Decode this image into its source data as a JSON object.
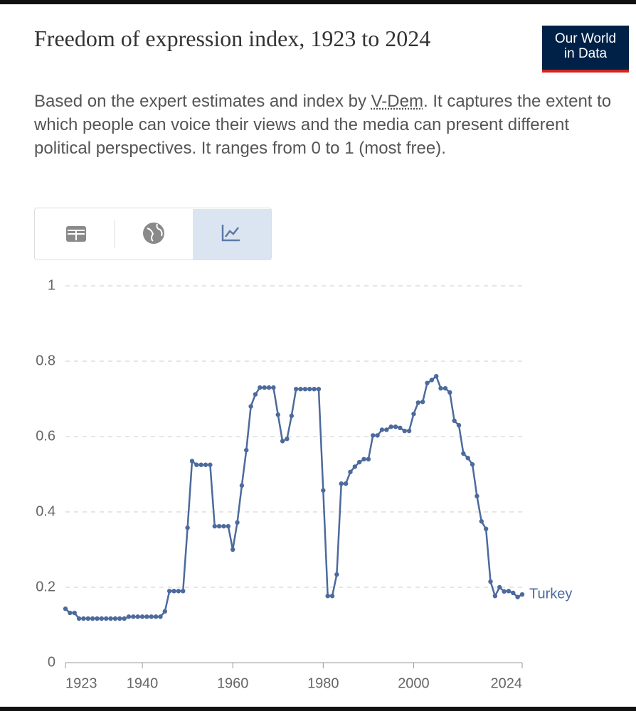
{
  "header": {
    "title": "Freedom of expression index, 1923 to 2024",
    "logo": [
      "Our World",
      "in Data"
    ],
    "subtitle": [
      "Based on the expert estimates and index by ",
      "V-Dem",
      ". It captures the extent to which people can voice their views and the media can present different political perspectives. It ranges from 0 to 1 (most free)."
    ]
  },
  "chart_data": {
    "type": "line",
    "x": [
      1923,
      1924,
      1925,
      1926,
      1927,
      1928,
      1929,
      1930,
      1931,
      1932,
      1933,
      1934,
      1935,
      1936,
      1937,
      1938,
      1939,
      1940,
      1941,
      1942,
      1943,
      1944,
      1945,
      1946,
      1947,
      1948,
      1949,
      1950,
      1951,
      1952,
      1953,
      1954,
      1955,
      1956,
      1957,
      1958,
      1959,
      1960,
      1961,
      1962,
      1963,
      1964,
      1965,
      1966,
      1967,
      1968,
      1969,
      1970,
      1971,
      1972,
      1973,
      1974,
      1975,
      1976,
      1977,
      1978,
      1979,
      1980,
      1981,
      1982,
      1983,
      1984,
      1985,
      1986,
      1987,
      1988,
      1989,
      1990,
      1991,
      1992,
      1993,
      1994,
      1995,
      1996,
      1997,
      1998,
      1999,
      2000,
      2001,
      2002,
      2003,
      2004,
      2005,
      2006,
      2007,
      2008,
      2009,
      2010,
      2011,
      2012,
      2013,
      2014,
      2015,
      2016,
      2017,
      2018,
      2019,
      2020,
      2021,
      2022,
      2023,
      2024
    ],
    "series": [
      {
        "name": "Turkey",
        "color": "#4c6a9c",
        "values": [
          0.143,
          0.132,
          0.132,
          0.117,
          0.117,
          0.117,
          0.117,
          0.117,
          0.117,
          0.117,
          0.117,
          0.117,
          0.117,
          0.117,
          0.122,
          0.122,
          0.122,
          0.122,
          0.122,
          0.122,
          0.122,
          0.122,
          0.136,
          0.19,
          0.19,
          0.19,
          0.19,
          0.358,
          0.535,
          0.525,
          0.525,
          0.525,
          0.525,
          0.362,
          0.362,
          0.362,
          0.362,
          0.3,
          0.372,
          0.47,
          0.564,
          0.68,
          0.712,
          0.73,
          0.73,
          0.73,
          0.73,
          0.658,
          0.588,
          0.594,
          0.655,
          0.726,
          0.726,
          0.726,
          0.726,
          0.726,
          0.726,
          0.457,
          0.177,
          0.177,
          0.234,
          0.475,
          0.475,
          0.506,
          0.52,
          0.532,
          0.54,
          0.54,
          0.603,
          0.603,
          0.618,
          0.618,
          0.626,
          0.626,
          0.623,
          0.615,
          0.615,
          0.66,
          0.69,
          0.692,
          0.742,
          0.75,
          0.76,
          0.728,
          0.728,
          0.717,
          0.642,
          0.63,
          0.555,
          0.543,
          0.526,
          0.442,
          0.375,
          0.355,
          0.215,
          0.177,
          0.2,
          0.189,
          0.19,
          0.185,
          0.174,
          0.181
        ]
      }
    ],
    "xlim": [
      1923,
      2024
    ],
    "xticks": [
      1923,
      1940,
      1960,
      1980,
      2000,
      2024
    ],
    "ylim": [
      0,
      1
    ],
    "yticks": [
      0,
      0.2,
      0.4,
      0.6,
      0.8,
      1
    ],
    "grid": true
  }
}
